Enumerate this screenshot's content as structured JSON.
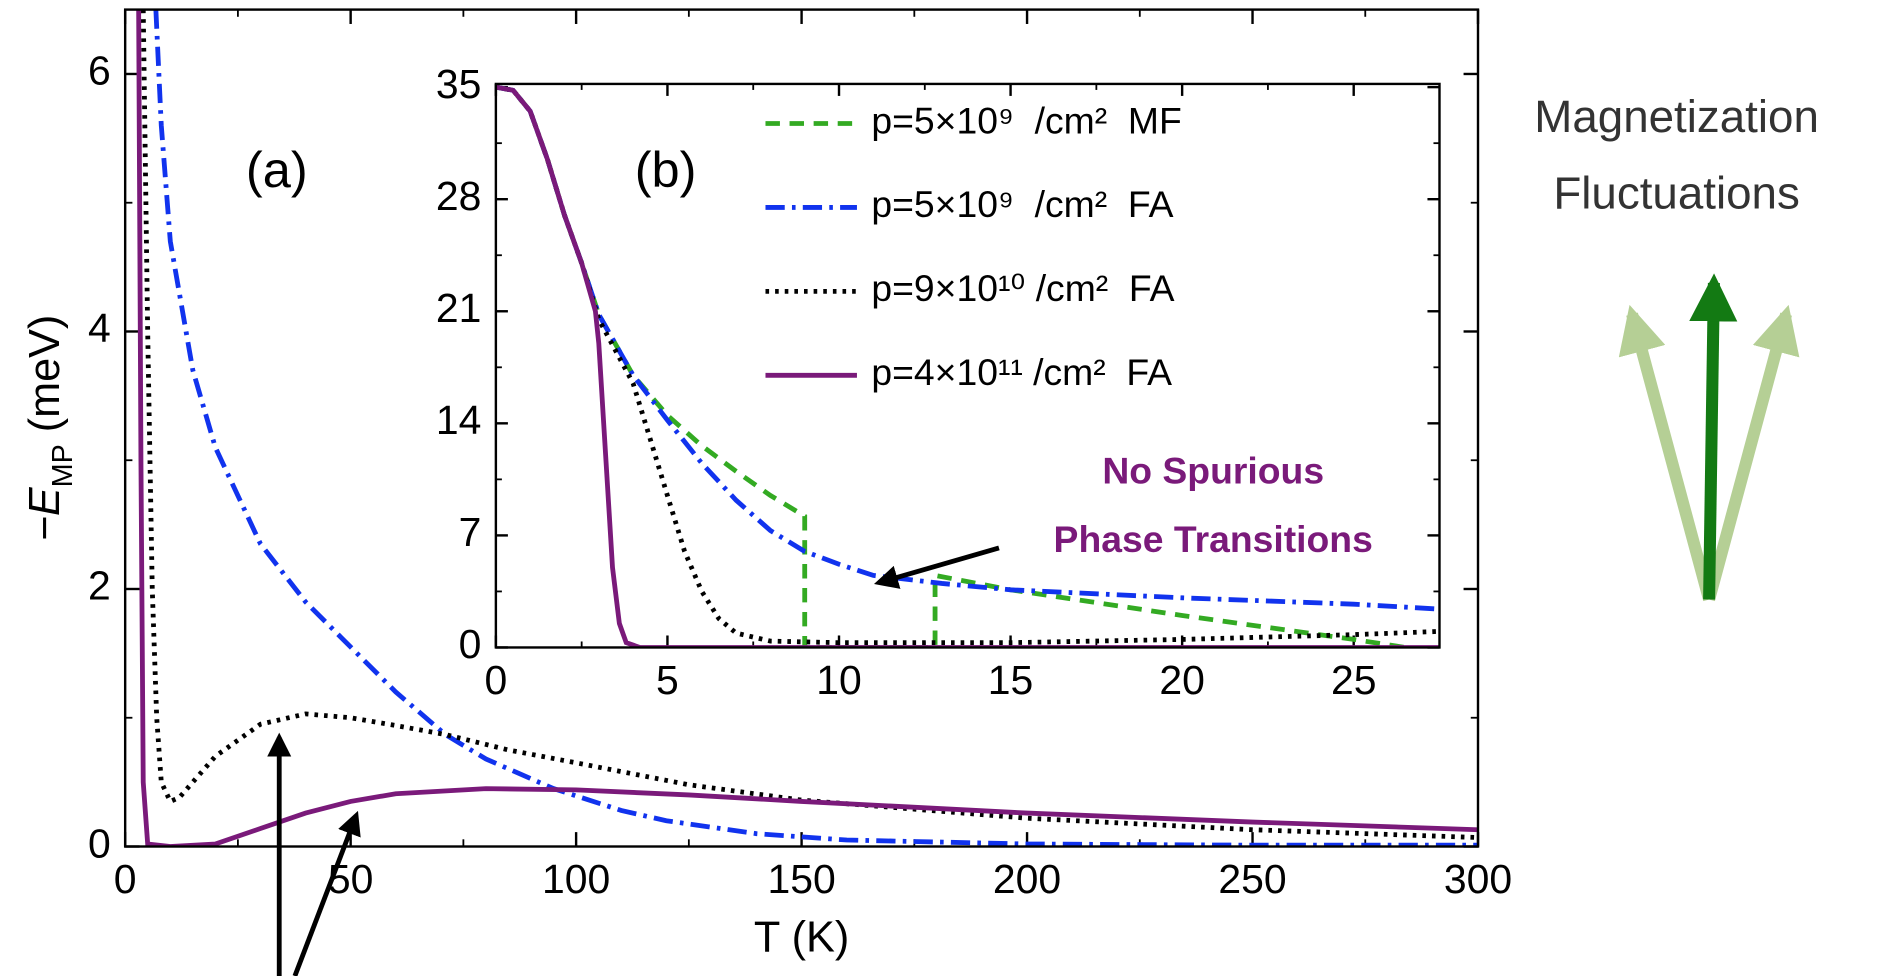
{
  "chart_data": [
    {
      "type": "line",
      "panel_label": "(a)",
      "xlabel": "T (K)",
      "ylabel": [
        "−E",
        "MP",
        " (meV)"
      ],
      "xlim": [
        0,
        300
      ],
      "ylim": [
        0,
        6.5
      ],
      "xticks": [
        0,
        50,
        100,
        150,
        200,
        250,
        300
      ],
      "yticks": [
        0,
        2,
        4,
        6
      ],
      "series": [
        {
          "color": "#1133ee",
          "style": "dashdot",
          "x": [
            6.8,
            8,
            10,
            15,
            20,
            30,
            40,
            50,
            60,
            71,
            80,
            95,
            110,
            120,
            140,
            160,
            200,
            250,
            300
          ],
          "values": [
            6.5,
            5.6,
            4.7,
            3.7,
            3.1,
            2.35,
            1.9,
            1.55,
            1.2,
            0.87,
            0.68,
            0.45,
            0.28,
            0.2,
            0.1,
            0.05,
            0.02,
            0.01,
            0.01
          ]
        },
        {
          "color": "#000000",
          "style": "dotted",
          "x": [
            4,
            5,
            6,
            7,
            8,
            10,
            12,
            15,
            20,
            30,
            40,
            50,
            60,
            71,
            85,
            100,
            125,
            150,
            200,
            250,
            300
          ],
          "values": [
            6.5,
            4,
            2,
            1,
            0.5,
            0.35,
            0.38,
            0.5,
            0.7,
            0.95,
            1.03,
            1.0,
            0.94,
            0.87,
            0.75,
            0.65,
            0.48,
            0.36,
            0.22,
            0.13,
            0.07
          ]
        },
        {
          "color": "#7a1a7a",
          "style": "solid",
          "x": [
            3,
            3.5,
            4,
            5,
            10,
            20,
            30,
            40,
            50,
            60,
            80,
            100,
            125,
            150,
            200,
            250,
            300
          ],
          "values": [
            6.5,
            3,
            0.5,
            0.02,
            0,
            0.02,
            0.14,
            0.26,
            0.35,
            0.41,
            0.45,
            0.44,
            0.4,
            0.35,
            0.26,
            0.19,
            0.13
          ]
        }
      ]
    },
    {
      "type": "line",
      "panel_label": "(b)",
      "legend": "upper right",
      "xlim": [
        0,
        27.5
      ],
      "ylim": [
        0,
        35.2
      ],
      "xticks": [
        0,
        5,
        10,
        15,
        20,
        25
      ],
      "yticks": [
        0,
        7,
        14,
        21,
        28,
        35
      ],
      "annotation": [
        "No Spurious",
        "Phase Transitions"
      ],
      "series": [
        {
          "name": "p=5×10⁹  /cm²  MF",
          "color": "#33aa22",
          "style": "dashed",
          "x": [
            0,
            0.5,
            1,
            1.5,
            2,
            2.5,
            3,
            4,
            5,
            6,
            7,
            8,
            9,
            9,
            12.8,
            12.8,
            15,
            20,
            25,
            26.5
          ],
          "values": [
            35,
            34.8,
            33.5,
            30.5,
            27,
            24,
            20.8,
            17,
            14.5,
            12.6,
            11,
            9.5,
            8.2,
            0,
            0,
            4.5,
            3.6,
            2.0,
            0.5,
            0
          ]
        },
        {
          "name": "p=5×10⁹  /cm²  FA",
          "color": "#1133ee",
          "style": "dashdot",
          "x": [
            0,
            0.5,
            1,
            1.5,
            2,
            2.5,
            3,
            4,
            5,
            6,
            7,
            8,
            9,
            10,
            11,
            13,
            15,
            20,
            25,
            27.5
          ],
          "values": [
            35,
            34.8,
            33.5,
            30.5,
            27,
            24,
            20.8,
            17,
            14.2,
            11.5,
            9.2,
            7.3,
            6,
            5.2,
            4.5,
            4.0,
            3.6,
            3.1,
            2.7,
            2.4
          ]
        },
        {
          "name": "p=9×10¹⁰ /cm²  FA",
          "color": "#000000",
          "style": "dotted",
          "x": [
            0,
            0.5,
            1,
            1.5,
            2,
            2.5,
            3,
            4,
            4.5,
            5,
            5.5,
            6,
            6.5,
            7,
            8,
            10,
            15,
            20,
            25,
            27.5
          ],
          "values": [
            35,
            34.8,
            33.5,
            30.5,
            27,
            24,
            20.5,
            16.5,
            13,
            9.5,
            6,
            3.5,
            1.8,
            0.9,
            0.4,
            0.3,
            0.3,
            0.5,
            0.8,
            1.0
          ]
        },
        {
          "name": "p=4×10¹¹ /cm²  FA",
          "color": "#7a1a7a",
          "style": "solid",
          "x": [
            0,
            0.5,
            1,
            1.5,
            2,
            2.5,
            2.9,
            3,
            3.2,
            3.4,
            3.6,
            3.8,
            4.2,
            10,
            27.5
          ],
          "values": [
            35,
            34.8,
            33.5,
            30.5,
            27,
            24,
            21,
            19,
            12,
            5,
            1.5,
            0.3,
            0,
            0,
            0
          ]
        }
      ]
    }
  ],
  "side_text": [
    "Magnetization",
    "Fluctuations"
  ]
}
